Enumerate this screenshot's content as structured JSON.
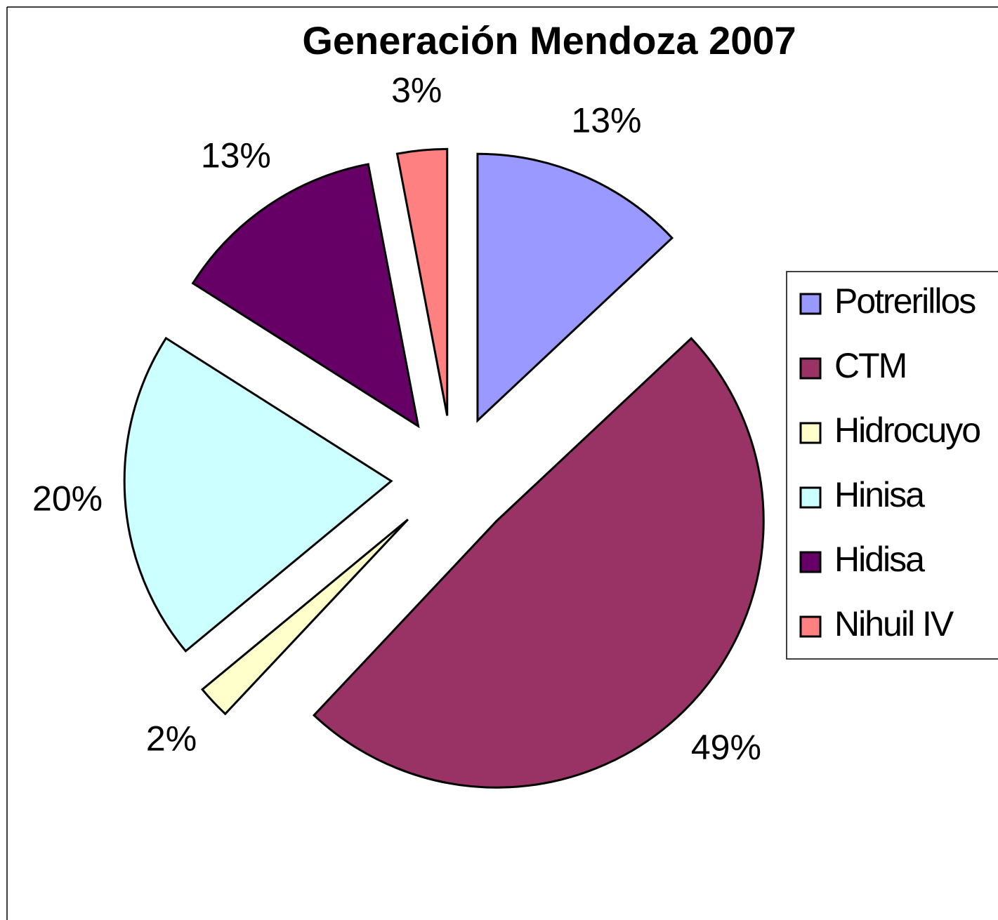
{
  "chart_data": {
    "type": "pie",
    "title": "Generación Mendoza 2007",
    "categories": [
      "Potrerillos",
      "CTM",
      "Hidrocuyo",
      "Hinisa",
      "Hidisa",
      "Nihuil IV"
    ],
    "values": [
      13,
      49,
      2,
      20,
      13,
      3
    ],
    "value_labels": [
      "13%",
      "49%",
      "2%",
      "20%",
      "13%",
      "3%"
    ],
    "colors": [
      "#9999ff",
      "#993366",
      "#ffffcc",
      "#ccffff",
      "#660066",
      "#ff8080"
    ],
    "exploded": true,
    "legend": "right"
  }
}
